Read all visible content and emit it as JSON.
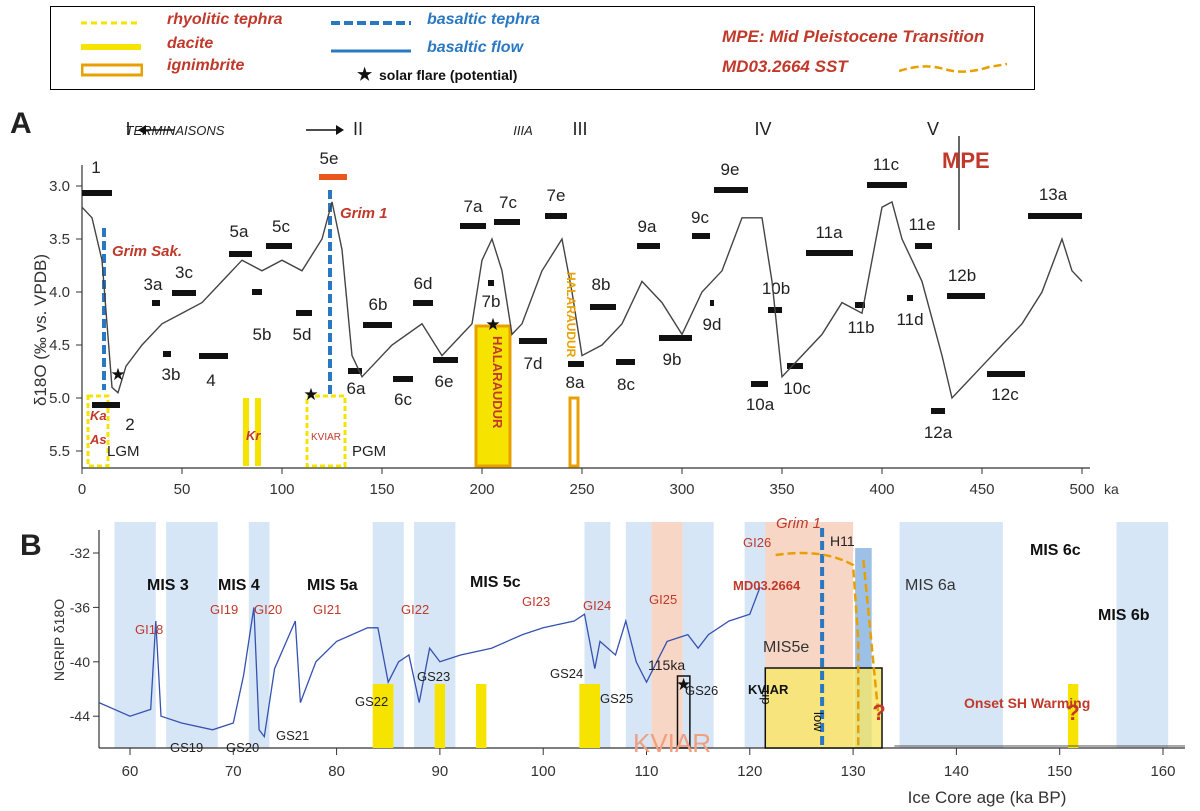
{
  "legend": {
    "rhyolitic": "rhyolitic tephra",
    "dacite": "dacite",
    "ignimbrite": "ignimbrite",
    "basaltic_tephra": "basaltic tephra",
    "basaltic_flow": "basaltic flow",
    "solar_flare": "solar flare (potential)",
    "mpe": "MPE: Mid Pleistocene Transition",
    "sst": "MD03.2664 SST",
    "colors": {
      "yellow": "#f6e400",
      "orange": "#e8a000",
      "blue": "#2a78c2",
      "red": "#c0392b"
    }
  },
  "chart_data": [
    {
      "panel": "A",
      "type": "line",
      "ylabel": "δ18O (‰ vs. VPDB)",
      "xunit": "ka",
      "xlim": [
        0,
        500
      ],
      "ylim": [
        5.5,
        3.0
      ],
      "yinverted": true,
      "xticks": [
        "0",
        "50",
        "100",
        "150",
        "200",
        "250",
        "300",
        "350",
        "400",
        "450",
        "500"
      ],
      "yticks": [
        "3.0",
        "3.5",
        "4.0",
        "4.5",
        "5.0",
        "5.5"
      ],
      "terminations": [
        "I",
        "TERMINAISONS",
        "II",
        "IIIA",
        "III",
        "IV",
        "V"
      ],
      "series": [
        {
          "x": [
            0,
            5,
            10,
            15,
            18,
            22,
            30,
            40,
            50,
            60,
            70,
            80,
            90,
            100,
            110,
            120,
            125,
            130,
            135,
            140,
            145,
            155,
            170,
            180,
            190,
            195,
            200,
            205,
            210,
            215,
            220,
            230,
            240,
            245,
            250,
            260,
            270,
            280,
            290,
            300,
            310,
            320,
            330,
            340,
            345,
            350,
            360,
            370,
            380,
            390,
            400,
            405,
            410,
            420,
            430,
            435,
            440,
            450,
            460,
            470,
            480,
            490,
            495,
            500
          ],
          "y": [
            3.2,
            3.3,
            3.7,
            4.9,
            4.95,
            4.7,
            4.5,
            4.3,
            4.2,
            4.1,
            3.9,
            3.7,
            3.8,
            3.7,
            3.8,
            3.5,
            3.15,
            3.6,
            4.6,
            4.8,
            4.7,
            4.5,
            4.3,
            4.6,
            4.4,
            4.3,
            3.7,
            3.5,
            3.8,
            4.4,
            4.3,
            3.8,
            3.5,
            4.0,
            4.6,
            4.5,
            4.3,
            3.9,
            4.1,
            4.4,
            4.0,
            3.8,
            3.3,
            3.3,
            3.9,
            4.8,
            4.6,
            4.4,
            4.1,
            4.2,
            3.2,
            3.15,
            3.5,
            3.9,
            4.6,
            5.0,
            4.9,
            4.7,
            4.5,
            4.3,
            4.0,
            3.5,
            3.8,
            3.9
          ]
        }
      ],
      "mis_labels": [
        "1",
        "2",
        "3a",
        "3b",
        "3c",
        "4",
        "5a",
        "5b",
        "5c",
        "5d",
        "5e",
        "6a",
        "6b",
        "6c",
        "6d",
        "6e",
        "7a",
        "7b",
        "7c",
        "7d",
        "7e",
        "8a",
        "8b",
        "8c",
        "9a",
        "9b",
        "9c",
        "9d",
        "9e",
        "10a",
        "10b",
        "10c",
        "11a",
        "11b",
        "11c",
        "11d",
        "11e",
        "12a",
        "12b",
        "12c",
        "13a"
      ],
      "annotations": [
        "Grim Sak.",
        "Grim 1",
        "HALARAUDUR",
        "HALARAUDUR",
        "Ka",
        "As",
        "LGM",
        "Kr",
        "KVIAR",
        "PGM",
        "MPE"
      ]
    },
    {
      "panel": "B",
      "type": "line",
      "ylabel": "NGRIP δ18O",
      "xlabel": "Ice Core age (ka  BP)",
      "xlim": [
        57,
        162
      ],
      "ylim": [
        -47,
        -31
      ],
      "xticks": [
        "60",
        "70",
        "80",
        "90",
        "100",
        "110",
        "120",
        "130",
        "140",
        "150",
        "160"
      ],
      "yticks": [
        "-32",
        "-36",
        "-40",
        "-44"
      ],
      "series": [
        {
          "name": "NGRIP",
          "x": [
            57,
            60,
            62,
            62.5,
            63,
            65,
            68,
            70,
            71,
            72,
            72.5,
            73,
            74,
            76,
            76.5,
            78,
            80,
            83,
            84,
            85,
            86,
            87,
            88,
            89,
            90,
            92,
            95,
            98,
            100,
            103,
            104,
            105,
            105.5,
            107,
            108,
            109,
            110,
            112,
            114,
            115,
            116,
            118,
            120,
            121
          ],
          "y": [
            -43,
            -44,
            -43.5,
            -37,
            -44,
            -44.5,
            -45,
            -44.5,
            -41,
            -36,
            -45,
            -45.5,
            -40.5,
            -37,
            -43,
            -40,
            -38.5,
            -37.5,
            -37.5,
            -41.5,
            -40,
            -39.5,
            -43,
            -39,
            -40,
            -39.5,
            -39,
            -38,
            -37.5,
            -37,
            -36.5,
            -40.5,
            -38.5,
            -39.5,
            -37,
            -40,
            -41.5,
            -38.5,
            -38,
            -39,
            -38,
            -37,
            -36.5,
            -34.5
          ]
        }
      ],
      "labels": [
        "MIS 3",
        "MIS 4",
        "MIS 5a",
        "MIS 5c",
        "MIS 6a",
        "MIS 6c",
        "MIS 6b",
        "MIS5e",
        "GI18",
        "GI19",
        "GI20",
        "GI21",
        "GI22",
        "GI23",
        "GI24",
        "GI25",
        "GI26",
        "GS19",
        "GS20",
        "GS21",
        "GS22",
        "GS23",
        "GS24",
        "GS25",
        "GS26",
        "115ka",
        "H11",
        "Grim 1",
        "MD03.2664",
        "KVIAR",
        "KVIAR",
        "up",
        "low",
        "Onset SH Warming",
        "?",
        "?"
      ]
    }
  ]
}
